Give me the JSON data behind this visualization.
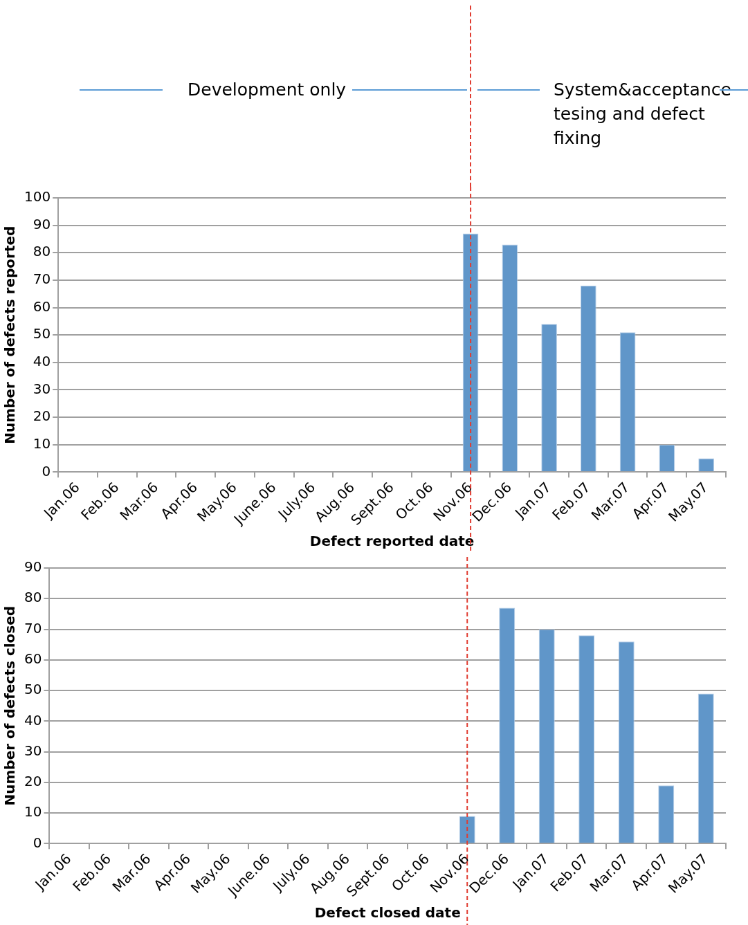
{
  "chart_data": [
    {
      "type": "bar",
      "categories": [
        "Jan.06",
        "Feb.06",
        "Mar.06",
        "Apr.06",
        "May.06",
        "June.06",
        "July.06",
        "Aug.06",
        "Sept.06",
        "Oct.06",
        "Nov.06",
        "Dec.06",
        "Jan.07",
        "Feb.07",
        "Mar.07",
        "Apr.07",
        "May.07"
      ],
      "values": [
        0,
        0,
        0,
        0,
        0,
        0,
        0,
        0,
        0,
        0,
        87,
        83,
        54,
        68,
        51,
        10,
        5
      ],
      "color": "#6096c9",
      "ylim": [
        0,
        100
      ],
      "yticks": [
        0,
        10,
        20,
        30,
        40,
        50,
        60,
        70,
        80,
        90,
        100
      ],
      "grid": "y",
      "ylabel": "Number of defects reported",
      "xlabel": "Defect reported date",
      "annotations": [
        "Development only",
        "System&acceptance tesing and defect fixing"
      ],
      "ref_lines": [
        {
          "axis": "x",
          "value": "Nov.06",
          "color": "#e03c31",
          "line_style": "dashed"
        }
      ]
    },
    {
      "type": "bar",
      "categories": [
        "Jan.06",
        "Feb.06",
        "Mar.06",
        "Apr.06",
        "May.06",
        "June.06",
        "July.06",
        "Aug.06",
        "Sept.06",
        "Oct.06",
        "Nov.06",
        "Dec.06",
        "Jan.07",
        "Feb.07",
        "Mar.07",
        "Apr.07",
        "May.07"
      ],
      "values": [
        0,
        0,
        0,
        0,
        0,
        0,
        0,
        0,
        0,
        0,
        9,
        77,
        70,
        68,
        66,
        19,
        49
      ],
      "color": "#6096c9",
      "ylim": [
        0,
        90
      ],
      "yticks": [
        0,
        10,
        20,
        30,
        40,
        50,
        60,
        70,
        80,
        90
      ],
      "grid": "y",
      "ylabel": "Number of defects closed",
      "xlabel": "Defect closed date",
      "ref_lines": [
        {
          "axis": "x",
          "value": "Nov.06",
          "color": "#e03c31",
          "line_style": "dashed"
        }
      ]
    }
  ]
}
